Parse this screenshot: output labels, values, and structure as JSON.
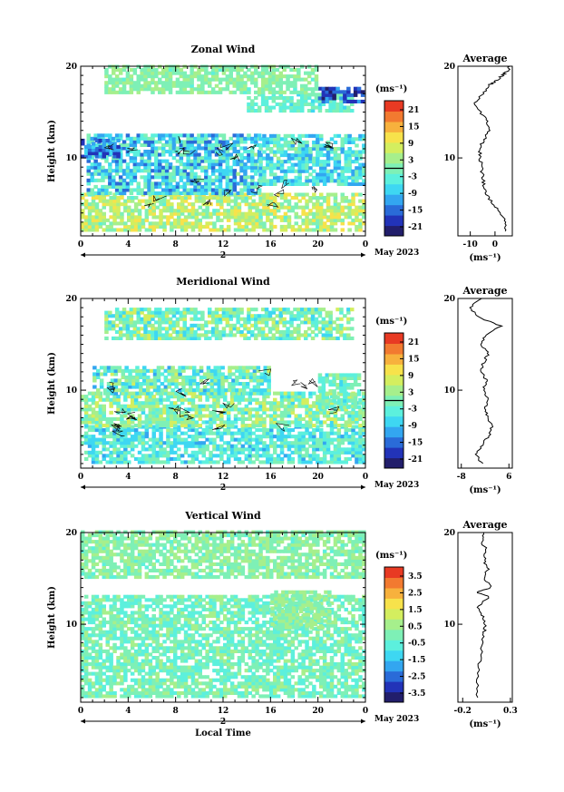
{
  "figure": {
    "x_ticks": [
      "0",
      "4",
      "8",
      "12",
      "16",
      "20",
      "0"
    ],
    "y_ticks": [
      "20",
      "10"
    ],
    "day_label": "2",
    "date_label": "May 2023",
    "x_axis_label": "Local Time",
    "y_axis_label": "Height (km)",
    "cbar_unit": "(ms⁻¹)",
    "avg_title": "Average",
    "avg_unit": "(ms⁻¹)"
  },
  "colors": {
    "scale": [
      "#221e6b",
      "#2233b8",
      "#2a6bd8",
      "#33a6f0",
      "#3ed7f2",
      "#5cf0dd",
      "#7ef0b6",
      "#a6ef8c",
      "#d4ee5f",
      "#f7e24b",
      "#f7b13d",
      "#f27a30",
      "#e83a23"
    ],
    "frame": "#000000",
    "axis_line": "#000000"
  },
  "chart_data": [
    {
      "type": "heatmap",
      "title": "Zonal Wind",
      "xlabel": "",
      "ylabel": "Height (km)",
      "xlim": [
        0,
        24
      ],
      "ylim": [
        1.5,
        20
      ],
      "colorbar": {
        "ticks": [
          "21",
          "15",
          "9",
          "3",
          "-3",
          "-9",
          "-15",
          "-21"
        ],
        "range": [
          -24,
          24
        ],
        "zero_line": true
      },
      "average": {
        "xticks": [
          "-10",
          "0"
        ],
        "xlim": [
          -15,
          7
        ],
        "ylim": [
          1.5,
          20
        ],
        "profile": [
          [
            4.5,
            2
          ],
          [
            4.0,
            3
          ],
          [
            2.5,
            4
          ],
          [
            -1.0,
            5
          ],
          [
            -3.5,
            6
          ],
          [
            -4.5,
            7
          ],
          [
            -5.0,
            8
          ],
          [
            -5.5,
            9
          ],
          [
            -6.0,
            10
          ],
          [
            -6.2,
            11
          ],
          [
            -4.5,
            12
          ],
          [
            -2.0,
            13
          ],
          [
            -3.0,
            14
          ],
          [
            -6.0,
            15
          ],
          [
            -8.0,
            16
          ],
          [
            -5.0,
            17
          ],
          [
            -2.0,
            18
          ],
          [
            1.0,
            18.5
          ],
          [
            3.0,
            19
          ],
          [
            5.0,
            19.5
          ],
          [
            6.0,
            20
          ]
        ]
      },
      "regions": [
        {
          "x": [
            0,
            24
          ],
          "y": [
            2,
            6
          ],
          "range": [
            -2,
            12
          ]
        },
        {
          "x": [
            0.5,
            15
          ],
          "y": [
            6,
            12.5
          ],
          "range": [
            -15,
            2
          ]
        },
        {
          "x": [
            15,
            24
          ],
          "y": [
            7,
            12.5
          ],
          "range": [
            -12,
            2
          ]
        },
        {
          "x": [
            0,
            3
          ],
          "y": [
            10,
            12
          ],
          "range": [
            -20,
            -8
          ]
        },
        {
          "x": [
            14,
            23
          ],
          "y": [
            15,
            16.8
          ],
          "range": [
            -6,
            2
          ]
        },
        {
          "x": [
            20,
            23.8
          ],
          "y": [
            16,
            17.5
          ],
          "range": [
            -22,
            -12
          ]
        },
        {
          "x": [
            2,
            20
          ],
          "y": [
            17,
            20
          ],
          "range": [
            -2,
            4
          ]
        }
      ]
    },
    {
      "type": "heatmap",
      "title": "Meridional Wind",
      "xlabel": "",
      "ylabel": "Height (km)",
      "xlim": [
        0,
        24
      ],
      "ylim": [
        1.5,
        20
      ],
      "colorbar": {
        "ticks": [
          "21",
          "15",
          "9",
          "3",
          "-3",
          "-9",
          "-15",
          "-21"
        ],
        "range": [
          -24,
          24
        ],
        "zero_line": true
      },
      "average": {
        "xticks": [
          "-8",
          "6"
        ],
        "xlim": [
          -9,
          7
        ],
        "ylim": [
          1.5,
          20
        ],
        "profile": [
          [
            -2.0,
            2
          ],
          [
            -3.5,
            3
          ],
          [
            -2.0,
            4
          ],
          [
            0.0,
            5
          ],
          [
            1.0,
            6
          ],
          [
            0.0,
            7
          ],
          [
            -1.0,
            8
          ],
          [
            0.0,
            9
          ],
          [
            -1.5,
            10
          ],
          [
            -0.5,
            11
          ],
          [
            -2.0,
            12
          ],
          [
            -1.5,
            13
          ],
          [
            0.0,
            14
          ],
          [
            -2.0,
            15
          ],
          [
            -1.0,
            16
          ],
          [
            3.5,
            17
          ],
          [
            -3.0,
            18
          ],
          [
            -5.5,
            19
          ],
          [
            -2.0,
            20
          ]
        ]
      },
      "regions": [
        {
          "x": [
            0,
            24
          ],
          "y": [
            2,
            6
          ],
          "range": [
            -10,
            2
          ]
        },
        {
          "x": [
            0,
            24
          ],
          "y": [
            6,
            9.5
          ],
          "range": [
            -6,
            8
          ]
        },
        {
          "x": [
            1,
            16
          ],
          "y": [
            9.5,
            12.5
          ],
          "range": [
            -10,
            6
          ]
        },
        {
          "x": [
            20,
            23.5
          ],
          "y": [
            8,
            11.5
          ],
          "range": [
            -6,
            4
          ]
        },
        {
          "x": [
            2,
            23
          ],
          "y": [
            15.5,
            19
          ],
          "range": [
            -8,
            8
          ]
        }
      ]
    },
    {
      "type": "heatmap",
      "title": "Vertical Wind",
      "xlabel": "Local Time",
      "ylabel": "Height (km)",
      "xlim": [
        0,
        24
      ],
      "ylim": [
        1.5,
        20
      ],
      "colorbar": {
        "ticks": [
          "3.5",
          "2.5",
          "1.5",
          "0.5",
          "-0.5",
          "-1.5",
          "-2.5",
          "-3.5"
        ],
        "range": [
          -4,
          4
        ],
        "zero_line": false
      },
      "average": {
        "xticks": [
          "-0.2",
          "0.3"
        ],
        "xlim": [
          -0.25,
          0.32
        ],
        "ylim": [
          1.5,
          20
        ],
        "profile": [
          [
            -0.05,
            2
          ],
          [
            -0.04,
            4
          ],
          [
            -0.02,
            6
          ],
          [
            0.0,
            8
          ],
          [
            0.02,
            9
          ],
          [
            0.04,
            10
          ],
          [
            0.0,
            11
          ],
          [
            -0.04,
            12
          ],
          [
            0.08,
            13
          ],
          [
            -0.06,
            13.5
          ],
          [
            0.1,
            14
          ],
          [
            0.03,
            15
          ],
          [
            0.06,
            16
          ],
          [
            0.02,
            17
          ],
          [
            0.05,
            18
          ],
          [
            0.0,
            19
          ],
          [
            0.02,
            20
          ]
        ]
      },
      "regions": [
        {
          "x": [
            0,
            24
          ],
          "y": [
            2,
            13
          ],
          "range": [
            -0.9,
            0.6
          ]
        },
        {
          "x": [
            16,
            21
          ],
          "y": [
            9.5,
            13.5
          ],
          "range": [
            -0.3,
            0.9
          ]
        },
        {
          "x": [
            0,
            24
          ],
          "y": [
            15,
            20
          ],
          "range": [
            -0.4,
            0.8
          ]
        }
      ]
    }
  ]
}
